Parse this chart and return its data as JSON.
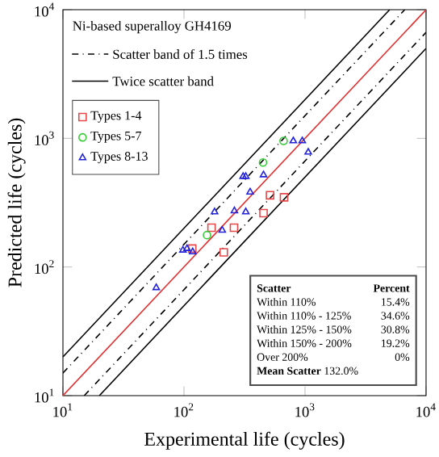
{
  "chart_data": {
    "type": "scatter",
    "xlabel": "Experimental life (cycles)",
    "ylabel": "Predicted life (cycles)",
    "legend_title": "Ni-based superalloy GH4169",
    "legend": "top left",
    "log": "xy",
    "grid": false,
    "xlim": [
      10,
      10000
    ],
    "ylim": [
      10,
      10000
    ],
    "xticks": [
      {
        "value": 10,
        "label": "10$^{1}$"
      },
      {
        "value": 100,
        "label": "10$^{2}$"
      },
      {
        "value": 1000,
        "label": "10$^{3}$"
      },
      {
        "value": 10000,
        "label": "10$^{4}$"
      }
    ],
    "yticks": [
      {
        "value": 10,
        "label": "10$^{1}$"
      },
      {
        "value": 100,
        "label": "10$^{2}$"
      },
      {
        "value": 1000,
        "label": "10$^{3}$"
      },
      {
        "value": 10000,
        "label": "10$^{4}$"
      }
    ],
    "series": [
      {
        "name": "Types 1-4",
        "color": "#e8474a",
        "marker": "square",
        "x": [
          514,
          671,
          454,
          169,
          259,
          213,
          117
        ],
        "values": [
          361,
          348,
          262,
          202,
          202,
          130,
          139
        ]
      },
      {
        "name": "Types 5-7",
        "color": "#33cc33",
        "marker": "circle",
        "x": [
          665,
          450,
          155
        ],
        "values": [
          955,
          649,
          177
        ]
      },
      {
        "name": "Types 8-13",
        "color": "#2222dd",
        "marker": "triangle",
        "x": [
          800,
          949,
          1063,
          308,
          324,
          454,
          352,
          179,
          261,
          324,
          207,
          98,
          106,
          118,
          59
        ],
        "values": [
          955,
          955,
          780,
          505,
          505,
          520,
          382,
          268,
          273,
          268,
          193,
          135,
          139,
          131,
          69
        ]
      },
      {
        "type": "line",
        "color": "#e03030",
        "line_style": "solid",
        "x": [
          10,
          10000
        ],
        "values": [
          10,
          10000
        ]
      },
      {
        "type": "line",
        "name": "Scatter band of 1.5 times",
        "color": "#000000",
        "line_style": "dashdot",
        "x": [
          10,
          6667
        ],
        "values": [
          15,
          10000
        ]
      },
      {
        "type": "line",
        "color": "#000000",
        "line_style": "dashdot",
        "x": [
          15,
          10000
        ],
        "values": [
          10,
          6667
        ]
      },
      {
        "type": "line",
        "name": "Twice scatter band",
        "color": "#000000",
        "line_style": "solid",
        "x": [
          10,
          5000
        ],
        "values": [
          20,
          10000
        ]
      },
      {
        "type": "line",
        "color": "#000000",
        "line_style": "solid",
        "x": [
          20,
          10000
        ],
        "values": [
          10,
          5000
        ]
      }
    ],
    "annotations": [
      "Scatter",
      "Percent",
      "Within 110%",
      "15.4%",
      "Within 110% - 125%",
      "34.6%",
      "Within 125% - 150%",
      "30.8%",
      "Within 150% - 200%",
      "19.2%",
      "Over 200%",
      "0%",
      "**Mean Scatter** 132.0%"
    ]
  }
}
